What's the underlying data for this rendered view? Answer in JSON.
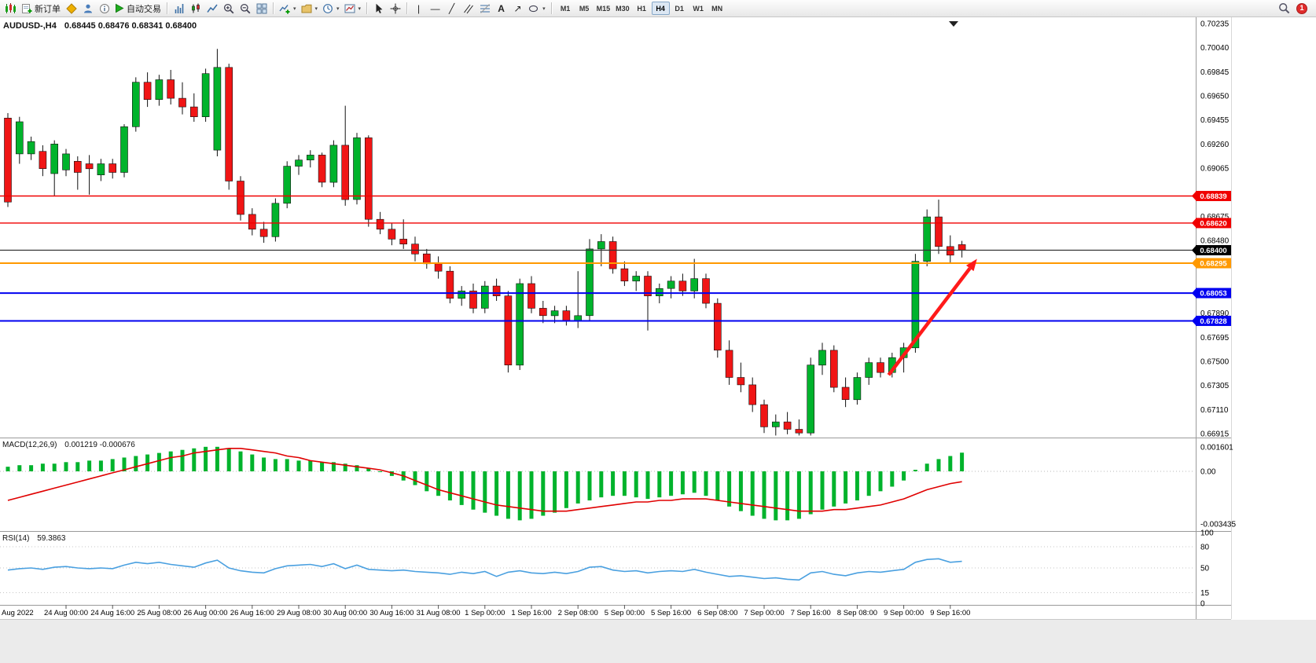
{
  "toolbar": {
    "new_order": "新订单",
    "auto_trading": "自动交易",
    "timeframes": [
      "M1",
      "M5",
      "M15",
      "M30",
      "H1",
      "H4",
      "D1",
      "W1",
      "MN"
    ],
    "active_timeframe": "H4",
    "notification_count": "1"
  },
  "chart_header": {
    "symbol_period": "AUDUSD-,H4",
    "ohlc": "0.68445 0.68476 0.68341 0.68400"
  },
  "chart_data": {
    "type": "candlestick",
    "symbol": "AUDUSD-",
    "period": "H4",
    "colors": {
      "bull": "#00b32c",
      "bear": "#f01515",
      "wick": "#111111",
      "macd_hist": "#00b32c",
      "macd_signal": "#e00000",
      "rsi_line": "#4aa0e0",
      "arrow": "#ff1a1a"
    },
    "price_axis": {
      "ticks": [
        "0.70235",
        "0.70040",
        "0.69845",
        "0.69650",
        "0.69455",
        "0.69260",
        "0.69065",
        "0.68675",
        "0.68480",
        "0.67890",
        "0.67695",
        "0.67500",
        "0.67305",
        "0.67110",
        "0.66915"
      ]
    },
    "price_lines": [
      {
        "label": "0.68839",
        "price": 0.68839,
        "color": "#f00000",
        "width": 1.4
      },
      {
        "label": "0.68620",
        "price": 0.6862,
        "color": "#f00000",
        "width": 1.4
      },
      {
        "label": "0.68400",
        "price": 0.684,
        "color": "#333333",
        "width": 1.2,
        "badge": "#000000"
      },
      {
        "label": "0.68295",
        "price": 0.68295,
        "color": "#ff9900",
        "width": 2
      },
      {
        "label": "0.68053",
        "price": 0.68053,
        "color": "#0000f0",
        "width": 2
      },
      {
        "label": "0.67828",
        "price": 0.67828,
        "color": "#0000f0",
        "width": 2
      }
    ],
    "candles": [
      [
        0.6947,
        0.6951,
        0.6875,
        0.6879
      ],
      [
        0.6918,
        0.6948,
        0.691,
        0.6944
      ],
      [
        0.6918,
        0.6932,
        0.6913,
        0.6928
      ],
      [
        0.692,
        0.6925,
        0.69,
        0.6906
      ],
      [
        0.6902,
        0.6929,
        0.6884,
        0.6926
      ],
      [
        0.6905,
        0.6922,
        0.69,
        0.6918
      ],
      [
        0.6912,
        0.6916,
        0.6889,
        0.6903
      ],
      [
        0.691,
        0.6917,
        0.6885,
        0.6906
      ],
      [
        0.6901,
        0.6914,
        0.6896,
        0.691
      ],
      [
        0.691,
        0.6914,
        0.6898,
        0.6903
      ],
      [
        0.6903,
        0.6942,
        0.6899,
        0.694
      ],
      [
        0.694,
        0.698,
        0.6936,
        0.6976
      ],
      [
        0.6976,
        0.6984,
        0.6956,
        0.6962
      ],
      [
        0.6962,
        0.6982,
        0.6957,
        0.6978
      ],
      [
        0.6978,
        0.6986,
        0.6958,
        0.6963
      ],
      [
        0.6963,
        0.6976,
        0.695,
        0.6956
      ],
      [
        0.6956,
        0.6967,
        0.6944,
        0.6948
      ],
      [
        0.6948,
        0.6987,
        0.6944,
        0.6983
      ],
      [
        0.6921,
        0.7003,
        0.6916,
        0.6988
      ],
      [
        0.6988,
        0.6991,
        0.6889,
        0.6896
      ],
      [
        0.6896,
        0.69,
        0.6864,
        0.6869
      ],
      [
        0.6869,
        0.6874,
        0.6852,
        0.6857
      ],
      [
        0.6857,
        0.6863,
        0.6846,
        0.6851
      ],
      [
        0.6851,
        0.6882,
        0.6847,
        0.6878
      ],
      [
        0.6878,
        0.6912,
        0.6874,
        0.6908
      ],
      [
        0.6908,
        0.6917,
        0.6901,
        0.6913
      ],
      [
        0.6913,
        0.6921,
        0.6907,
        0.6917
      ],
      [
        0.6917,
        0.6919,
        0.6891,
        0.6895
      ],
      [
        0.6895,
        0.6929,
        0.6891,
        0.6925
      ],
      [
        0.6925,
        0.6957,
        0.6876,
        0.6881
      ],
      [
        0.6881,
        0.6935,
        0.6877,
        0.6931
      ],
      [
        0.6931,
        0.6933,
        0.6859,
        0.6865
      ],
      [
        0.6865,
        0.6871,
        0.6853,
        0.6857
      ],
      [
        0.6857,
        0.6862,
        0.6844,
        0.6849
      ],
      [
        0.6849,
        0.6865,
        0.6841,
        0.6845
      ],
      [
        0.6845,
        0.6851,
        0.6831,
        0.6837
      ],
      [
        0.6837,
        0.6841,
        0.6825,
        0.6829
      ],
      [
        0.6829,
        0.6835,
        0.6817,
        0.6823
      ],
      [
        0.6823,
        0.6827,
        0.6797,
        0.6801
      ],
      [
        0.6801,
        0.6811,
        0.6795,
        0.6807
      ],
      [
        0.6807,
        0.6813,
        0.6789,
        0.6793
      ],
      [
        0.6793,
        0.6815,
        0.6789,
        0.6811
      ],
      [
        0.6811,
        0.6817,
        0.6799,
        0.6803
      ],
      [
        0.6803,
        0.6807,
        0.6741,
        0.6747
      ],
      [
        0.6747,
        0.6817,
        0.6743,
        0.6813
      ],
      [
        0.6813,
        0.6819,
        0.6789,
        0.6793
      ],
      [
        0.6793,
        0.6799,
        0.6781,
        0.6787
      ],
      [
        0.6787,
        0.6795,
        0.6781,
        0.6791
      ],
      [
        0.6791,
        0.6795,
        0.6779,
        0.6783
      ],
      [
        0.6783,
        0.6823,
        0.6777,
        0.6787
      ],
      [
        0.6787,
        0.6849,
        0.6783,
        0.6841
      ],
      [
        0.6841,
        0.6853,
        0.6827,
        0.6847
      ],
      [
        0.6847,
        0.6851,
        0.6821,
        0.6825
      ],
      [
        0.6825,
        0.6831,
        0.6811,
        0.6815
      ],
      [
        0.6815,
        0.6823,
        0.6807,
        0.6819
      ],
      [
        0.6819,
        0.6823,
        0.6775,
        0.6803
      ],
      [
        0.6803,
        0.6813,
        0.6797,
        0.6809
      ],
      [
        0.6809,
        0.6819,
        0.6801,
        0.6815
      ],
      [
        0.6815,
        0.6821,
        0.6803,
        0.6807
      ],
      [
        0.6807,
        0.6833,
        0.6801,
        0.6817
      ],
      [
        0.6817,
        0.6821,
        0.6793,
        0.6797
      ],
      [
        0.6797,
        0.6801,
        0.6753,
        0.6759
      ],
      [
        0.6759,
        0.6767,
        0.6731,
        0.6737
      ],
      [
        0.6737,
        0.6749,
        0.6725,
        0.6731
      ],
      [
        0.6731,
        0.6737,
        0.6709,
        0.6715
      ],
      [
        0.6715,
        0.6719,
        0.6692,
        0.6697
      ],
      [
        0.6697,
        0.6707,
        0.669,
        0.6701
      ],
      [
        0.6701,
        0.6709,
        0.6691,
        0.6695
      ],
      [
        0.6695,
        0.6703,
        0.669,
        0.6692
      ],
      [
        0.6692,
        0.6753,
        0.669,
        0.6747
      ],
      [
        0.6747,
        0.6765,
        0.6739,
        0.6759
      ],
      [
        0.6759,
        0.6763,
        0.6725,
        0.6729
      ],
      [
        0.6729,
        0.6737,
        0.6713,
        0.6719
      ],
      [
        0.6719,
        0.6741,
        0.6715,
        0.6737
      ],
      [
        0.6737,
        0.6753,
        0.6731,
        0.6749
      ],
      [
        0.6749,
        0.6753,
        0.6737,
        0.6741
      ],
      [
        0.6741,
        0.6757,
        0.6737,
        0.6753
      ],
      [
        0.6753,
        0.6765,
        0.6741,
        0.6761
      ],
      [
        0.6761,
        0.6837,
        0.6757,
        0.6831
      ],
      [
        0.6831,
        0.6873,
        0.6827,
        0.6867
      ],
      [
        0.6867,
        0.6881,
        0.6837,
        0.6843
      ],
      [
        0.6843,
        0.6852,
        0.6829,
        0.6836
      ],
      [
        0.68445,
        0.68476,
        0.68341,
        0.684
      ]
    ],
    "time_labels": [
      "Aug 2022",
      "24 Aug 00:00",
      "24 Aug 16:00",
      "25 Aug 08:00",
      "26 Aug 00:00",
      "26 Aug 16:00",
      "29 Aug 08:00",
      "30 Aug 00:00",
      "30 Aug 16:00",
      "31 Aug 08:00",
      "1 Sep 00:00",
      "1 Sep 16:00",
      "2 Sep 08:00",
      "5 Sep 00:00",
      "5 Sep 16:00",
      "6 Sep 08:00",
      "7 Sep 00:00",
      "7 Sep 16:00",
      "8 Sep 08:00",
      "9 Sep 00:00",
      "9 Sep 16:00"
    ],
    "macd": {
      "label": "MACD(12,26,9)",
      "values": "0.001219 -0.000676",
      "axis": [
        "0.001601",
        "0.00",
        "-0.003435"
      ],
      "histogram": [
        0.0003,
        0.0004,
        0.0004,
        0.0005,
        0.0005,
        0.0006,
        0.0006,
        0.0007,
        0.0007,
        0.0008,
        0.0009,
        0.001,
        0.0011,
        0.0012,
        0.0013,
        0.0014,
        0.0015,
        0.0016,
        0.0016,
        0.0015,
        0.0013,
        0.0011,
        0.0009,
        0.0008,
        0.0008,
        0.0007,
        0.0007,
        0.0006,
        0.0006,
        0.0005,
        0.0004,
        0.0002,
        0.0,
        -0.0003,
        -0.0006,
        -0.0009,
        -0.0013,
        -0.0016,
        -0.0019,
        -0.0022,
        -0.0025,
        -0.0027,
        -0.0029,
        -0.0031,
        -0.0032,
        -0.0031,
        -0.0029,
        -0.0027,
        -0.0024,
        -0.0021,
        -0.0019,
        -0.0017,
        -0.0016,
        -0.0016,
        -0.0017,
        -0.0018,
        -0.0017,
        -0.0016,
        -0.0015,
        -0.0014,
        -0.0016,
        -0.0019,
        -0.0023,
        -0.0026,
        -0.0029,
        -0.0031,
        -0.0032,
        -0.0032,
        -0.0031,
        -0.0028,
        -0.0025,
        -0.0023,
        -0.0021,
        -0.0019,
        -0.0016,
        -0.0013,
        -0.001,
        -0.0006,
        0.0001,
        0.0005,
        0.0008,
        0.001,
        0.001219
      ],
      "signal": [
        -0.0019,
        -0.0017,
        -0.0015,
        -0.0013,
        -0.0011,
        -0.0009,
        -0.0007,
        -0.0005,
        -0.0003,
        -0.0001,
        0.0001,
        0.0003,
        0.0005,
        0.0007,
        0.0009,
        0.001,
        0.0012,
        0.0013,
        0.0014,
        0.0015,
        0.0015,
        0.0014,
        0.0013,
        0.0012,
        0.001,
        0.0009,
        0.0007,
        0.0006,
        0.0005,
        0.0004,
        0.0003,
        0.0002,
        0.0001,
        -0.0001,
        -0.0003,
        -0.0006,
        -0.0009,
        -0.0012,
        -0.0014,
        -0.0016,
        -0.0018,
        -0.002,
        -0.0022,
        -0.0023,
        -0.0024,
        -0.0025,
        -0.0026,
        -0.0026,
        -0.0026,
        -0.0025,
        -0.0024,
        -0.0023,
        -0.0022,
        -0.0021,
        -0.002,
        -0.002,
        -0.0019,
        -0.0019,
        -0.0018,
        -0.0018,
        -0.0018,
        -0.0019,
        -0.002,
        -0.0021,
        -0.0022,
        -0.0023,
        -0.0024,
        -0.0025,
        -0.0026,
        -0.0026,
        -0.0026,
        -0.0025,
        -0.0025,
        -0.0024,
        -0.0023,
        -0.0022,
        -0.002,
        -0.0018,
        -0.0015,
        -0.0012,
        -0.001,
        -0.0008,
        -0.000676
      ]
    },
    "rsi": {
      "label": "RSI(14)",
      "value": "59.3863",
      "axis": [
        "100",
        "80",
        "50",
        "15",
        "0"
      ],
      "levels": [
        80,
        50,
        15
      ],
      "series": [
        47,
        49,
        50,
        48,
        51,
        52,
        50,
        49,
        50,
        49,
        54,
        58,
        56,
        58,
        55,
        53,
        51,
        57,
        61,
        50,
        46,
        44,
        43,
        49,
        53,
        54,
        55,
        52,
        56,
        49,
        54,
        48,
        47,
        46,
        47,
        45,
        44,
        43,
        41,
        44,
        42,
        45,
        38,
        44,
        46,
        43,
        42,
        44,
        42,
        45,
        51,
        52,
        47,
        45,
        46,
        43,
        45,
        46,
        45,
        48,
        44,
        41,
        38,
        39,
        37,
        35,
        36,
        34,
        33,
        43,
        45,
        41,
        39,
        43,
        45,
        44,
        46,
        48,
        58,
        62,
        63,
        58,
        59.3863
      ]
    },
    "annotation_arrow": {
      "from_index": 75.7,
      "from_price": 0.6739,
      "to_index": 83.3,
      "to_price": 0.6833,
      "color": "#ff1a1a",
      "width": 4.5
    }
  }
}
